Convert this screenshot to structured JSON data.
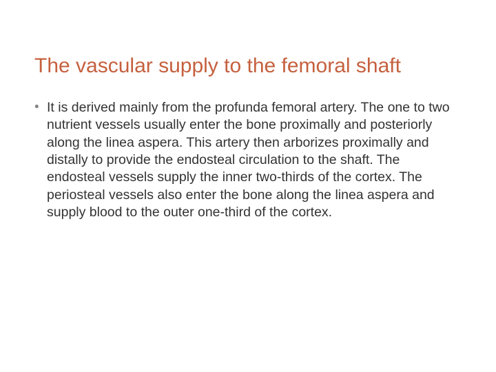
{
  "slide": {
    "title": "The vascular supply to the femoral shaft",
    "bullets": [
      {
        "marker": "•",
        "text": "It is derived mainly from the profunda femoral artery. The one to two nutrient vessels usually enter the bone proximally and posteriorly along the linea aspera. This artery then arborizes proximally and distally to provide the endosteal circulation to the shaft. The endosteal vessels supply the inner two-thirds of the cortex. The periosteal vessels also enter the bone along the linea aspera and supply blood to the outer one-third of the cortex."
      }
    ],
    "colors": {
      "title_color": "#c5603e",
      "body_text_color": "#333333",
      "bullet_marker_color": "#888888",
      "background_color": "#ffffff"
    },
    "typography": {
      "title_fontsize": 30,
      "body_fontsize": 19.5,
      "font_family": "Arial"
    }
  }
}
